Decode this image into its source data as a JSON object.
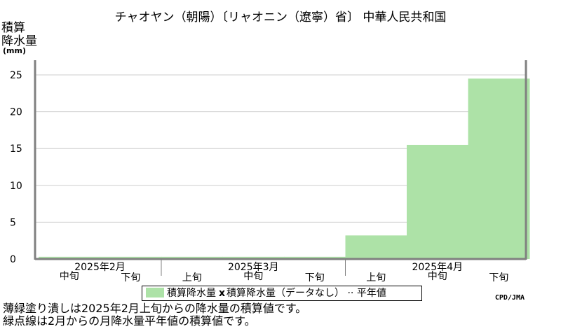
{
  "title": "チャオヤン（朝陽）〔リャオニン（遼寧）省〕 中華人民共和国",
  "ylabel_lines": [
    "積算",
    "降水量"
  ],
  "yunit": "(mm)",
  "legend": {
    "item1": "積算降水量",
    "marker": "x",
    "item2": "積算降水量（データなし）",
    "item3": "平年値"
  },
  "credit": "CPD/JMA",
  "notes": [
    "薄緑塗り潰しは2025年2月上旬からの降水量の積算値です。",
    "緑点線は2月からの月降水量平年値の積算値です。"
  ],
  "colors": {
    "fill": "#ade2a7",
    "grid": "#cccccc",
    "axis": "#808080"
  },
  "chart_data": {
    "type": "area",
    "categories": [
      "2月中旬",
      "2月下旬",
      "3月上旬",
      "3月中旬",
      "3月下旬",
      "4月上旬",
      "4月中旬",
      "4月下旬"
    ],
    "x_tick_labels": [
      "中旬",
      "下旬",
      "上旬",
      "中旬",
      "下旬",
      "上旬",
      "中旬",
      "下旬"
    ],
    "month_labels": [
      {
        "label": "2025年2月",
        "start": 0,
        "end": 2
      },
      {
        "label": "2025年3月",
        "start": 2,
        "end": 5
      },
      {
        "label": "2025年4月",
        "start": 5,
        "end": 8
      }
    ],
    "series": [
      {
        "name": "積算降水量",
        "values": [
          0.3,
          0.3,
          0.3,
          0.3,
          0.3,
          3.2,
          15.5,
          24.5
        ]
      }
    ],
    "ylim": [
      0,
      27
    ],
    "yticks": [
      0,
      5,
      10,
      15,
      20,
      25
    ],
    "grid": true,
    "legend_position": "bottom"
  }
}
